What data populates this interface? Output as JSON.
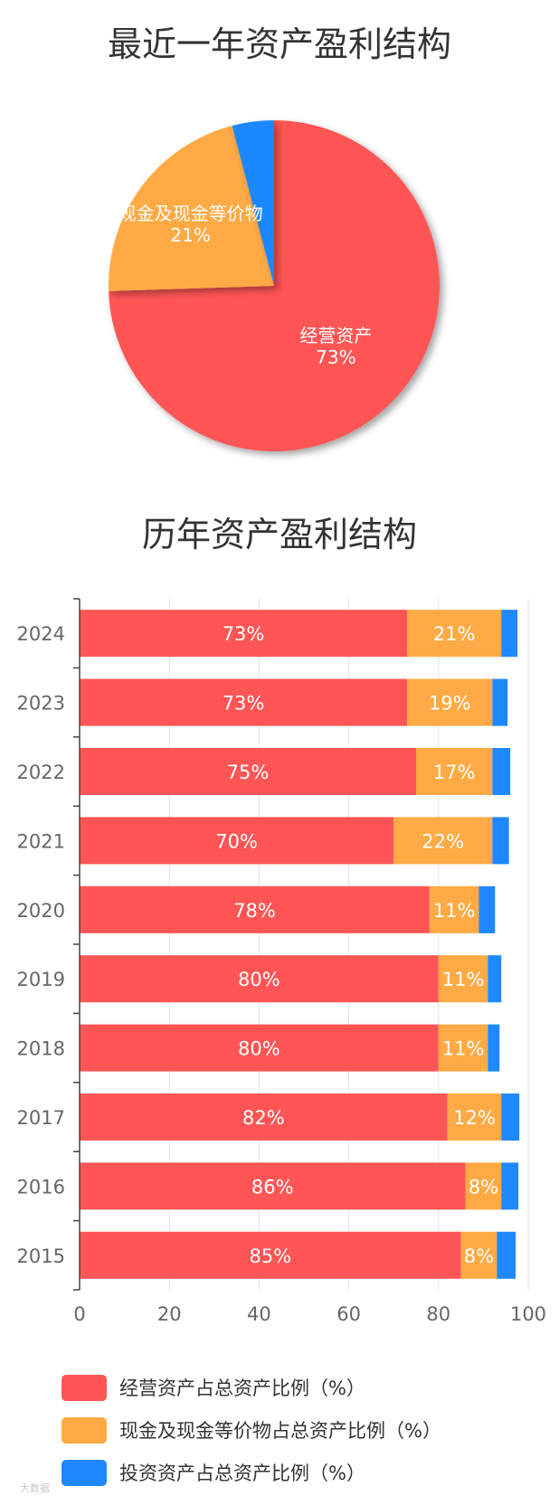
{
  "pie": {
    "title": "最近一年资产盈利结构",
    "slices": [
      {
        "label": "经营资产",
        "value": 73,
        "pct_text": "73%",
        "color": "#FF5555"
      },
      {
        "label": "现金及现金等价物",
        "value": 21,
        "pct_text": "21%",
        "color": "#FFAA44"
      },
      {
        "label": "投资资产",
        "value": 4,
        "pct_text": "",
        "color": "#1E88FF"
      }
    ]
  },
  "bars": {
    "title": "历年资产盈利结构"
  },
  "watermark": "大数据",
  "chart_data": [
    {
      "type": "pie",
      "title": "最近一年资产盈利结构",
      "labels": [
        "经营资产",
        "现金及现金等价物",
        "投资资产"
      ],
      "values": [
        73,
        21,
        4
      ],
      "colors": [
        "#FF5555",
        "#FFAA44",
        "#1E88FF"
      ]
    },
    {
      "type": "bar",
      "orientation": "horizontal",
      "stacked": true,
      "title": "历年资产盈利结构",
      "categories": [
        "2024",
        "2023",
        "2022",
        "2021",
        "2020",
        "2019",
        "2018",
        "2017",
        "2016",
        "2015"
      ],
      "series": [
        {
          "name": "经营资产占总资产比例（%）",
          "color": "#FF5555",
          "values": [
            73,
            73,
            75,
            70,
            78,
            80,
            80,
            82,
            86,
            85
          ]
        },
        {
          "name": "现金及现金等价物占总资产比例（%）",
          "color": "#FFAA44",
          "values": [
            21,
            19,
            17,
            22,
            11,
            11,
            11,
            12,
            8,
            8
          ]
        },
        {
          "name": "投资资产占总资产比例（%）",
          "color": "#1E88FF",
          "values": [
            3.6,
            3.4,
            4,
            3.7,
            3.6,
            3,
            2.6,
            4,
            3.8,
            4.2
          ]
        }
      ],
      "labels": [
        [
          "73%",
          "21%",
          ""
        ],
        [
          "73%",
          "19%",
          ""
        ],
        [
          "75%",
          "17%",
          ""
        ],
        [
          "70%",
          "22%",
          ""
        ],
        [
          "78%",
          "11%",
          ""
        ],
        [
          "80%",
          "11%",
          ""
        ],
        [
          "80%",
          "11%",
          ""
        ],
        [
          "82%",
          "12%",
          ""
        ],
        [
          "86%",
          "8%",
          ""
        ],
        [
          "85%",
          "8%",
          ""
        ]
      ],
      "xlim": [
        0,
        100
      ],
      "xticks": [
        "0",
        "20",
        "40",
        "60",
        "80",
        "100"
      ],
      "grid": true,
      "legend": "bottom"
    }
  ]
}
